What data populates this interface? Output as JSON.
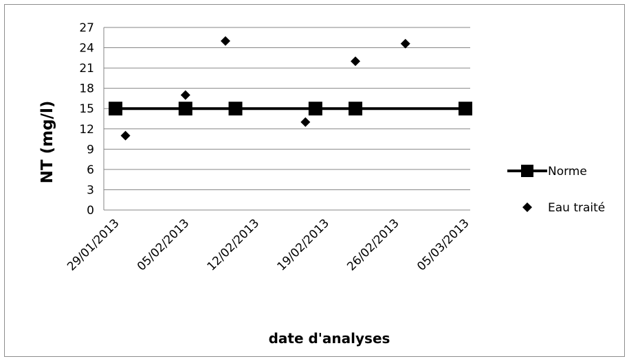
{
  "chart_data": {
    "type": "scatter",
    "xlabel": "date d'analyses",
    "ylabel": "NT (mg/l)",
    "x_axis": {
      "type": "date",
      "min": "2013-01-29",
      "max": "2013-03-05",
      "tick_labels": [
        "29/01/2013",
        "05/02/2013",
        "12/02/2013",
        "19/02/2013",
        "26/02/2013",
        "05/03/2013"
      ]
    },
    "ylim": [
      0,
      27
    ],
    "y_ticks": [
      "0",
      "3",
      "6",
      "9",
      "12",
      "15",
      "18",
      "21",
      "24",
      "27"
    ],
    "grid": true,
    "legend_position": "right",
    "series": [
      {
        "name": "Norme",
        "kind": "line-with-square-markers",
        "color": "#000000",
        "points": [
          {
            "x": "2013-01-29",
            "y": 15
          },
          {
            "x": "2013-02-05",
            "y": 15
          },
          {
            "x": "2013-02-10",
            "y": 15
          },
          {
            "x": "2013-02-18",
            "y": 15
          },
          {
            "x": "2013-02-22",
            "y": 15
          },
          {
            "x": "2013-03-05",
            "y": 15
          }
        ]
      },
      {
        "name": "Eau traité",
        "kind": "diamond-markers",
        "color": "#000000",
        "points": [
          {
            "x": "2013-01-30",
            "y": 11
          },
          {
            "x": "2013-02-05",
            "y": 17
          },
          {
            "x": "2013-02-09",
            "y": 25
          },
          {
            "x": "2013-02-17",
            "y": 13
          },
          {
            "x": "2013-02-22",
            "y": 22
          },
          {
            "x": "2013-02-27",
            "y": 24.6
          }
        ]
      }
    ]
  }
}
